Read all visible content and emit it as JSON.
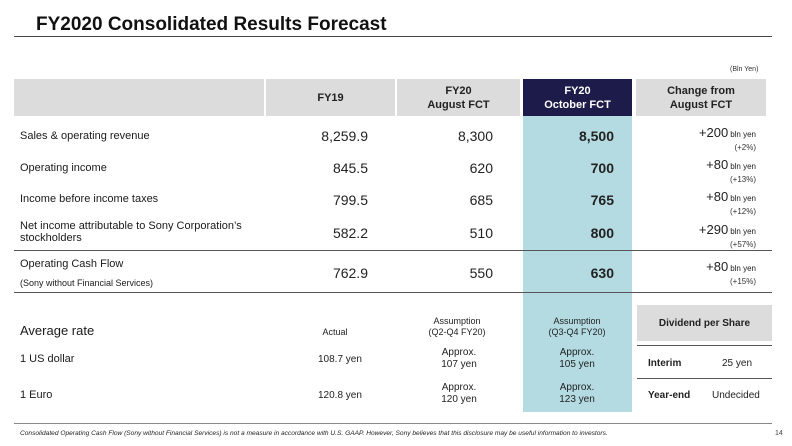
{
  "title": "FY2020 Consolidated Results Forecast",
  "unit_note": "(Bln Yen)",
  "headers": {
    "fy19": "FY19",
    "aug_line1": "FY20",
    "aug_line2": "August FCT",
    "oct_line1": "FY20",
    "oct_line2": "October FCT",
    "chg_line1": "Change from",
    "chg_line2": "August FCT"
  },
  "rows": [
    {
      "label": "Sales & operating revenue",
      "fy19": "8,259.9",
      "aug": "8,300",
      "oct": "8,500",
      "chg": "+200",
      "chg_unit": "bln yen",
      "pct": "(+2%)"
    },
    {
      "label": "Operating income",
      "fy19": "845.5",
      "aug": "620",
      "oct": "700",
      "chg": "+80",
      "chg_unit": "bln yen",
      "pct": "(+13%)"
    },
    {
      "label": "Income before income taxes",
      "fy19": "799.5",
      "aug": "685",
      "oct": "765",
      "chg": "+80",
      "chg_unit": "bln yen",
      "pct": "(+12%)"
    },
    {
      "label_line1": "Net income attributable to Sony Corporation’s",
      "label_line2": "stockholders",
      "fy19": "582.2",
      "aug": "510",
      "oct": "800",
      "chg": "+290",
      "chg_unit": "bln yen",
      "pct": "(+57%)"
    }
  ],
  "cash_flow": {
    "label": "Operating Cash Flow",
    "sublabel": "(Sony without Financial Services)",
    "fy19": "762.9",
    "aug": "550",
    "oct": "630",
    "chg": "+80",
    "chg_unit": "bln yen",
    "pct": "(+15%)"
  },
  "rates": {
    "title": "Average rate",
    "actual_hdr": "Actual",
    "aug_hdr_line1": "Assumption",
    "aug_hdr_line2": "(Q2-Q4 FY20)",
    "oct_hdr_line1": "Assumption",
    "oct_hdr_line2": "(Q3-Q4 FY20)",
    "items": [
      {
        "label": "1 US dollar",
        "actual": "108.7 yen",
        "aug_line1": "Approx.",
        "aug_line2": "107 yen",
        "oct_line1": "Approx.",
        "oct_line2": "105 yen"
      },
      {
        "label": "1 Euro",
        "actual": "120.8 yen",
        "aug_line1": "Approx.",
        "aug_line2": "120 yen",
        "oct_line1": "Approx.",
        "oct_line2": "123 yen"
      }
    ]
  },
  "dividend": {
    "title": "Dividend per Share",
    "interim_label": "Interim",
    "interim_value": "25 yen",
    "yearend_label": "Year-end",
    "yearend_value": "Undecided"
  },
  "footnote": "Consolidated Operating Cash Flow (Sony without Financial Services) is not a measure in accordance with U.S. GAAP.  However, Sony believes that this disclosure may be useful information to investors.",
  "page_number": "14"
}
